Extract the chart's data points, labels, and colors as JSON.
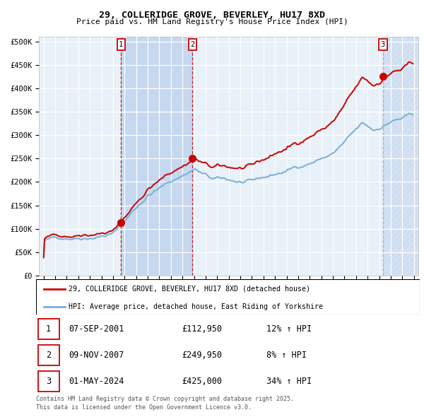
{
  "title": "29, COLLERIDGE GROVE, BEVERLEY, HU17 8XD",
  "subtitle": "Price paid vs. HM Land Registry's House Price Index (HPI)",
  "legend_line1": "29, COLLERIDGE GROVE, BEVERLEY, HU17 8XD (detached house)",
  "legend_line2": "HPI: Average price, detached house, East Riding of Yorkshire",
  "sale1_date": "07-SEP-2001",
  "sale1_price": "£112,950",
  "sale1_hpi": "12% ↑ HPI",
  "sale1_year": 2001.69,
  "sale1_value": 112950,
  "sale2_date": "09-NOV-2007",
  "sale2_price": "£249,950",
  "sale2_hpi": "8% ↑ HPI",
  "sale2_year": 2007.86,
  "sale2_value": 249950,
  "sale3_date": "01-MAY-2024",
  "sale3_price": "£425,000",
  "sale3_hpi": "34% ↑ HPI",
  "sale3_year": 2024.33,
  "sale3_value": 425000,
  "footnote_line1": "Contains HM Land Registry data © Crown copyright and database right 2025.",
  "footnote_line2": "This data is licensed under the Open Government Licence v3.0.",
  "line_color_red": "#cc0000",
  "line_color_blue": "#7aaed6",
  "bg_color": "#e8f0f8",
  "grid_color": "#ffffff",
  "ylim_min": 0,
  "ylim_max": 510000,
  "xmin": 1994.6,
  "xmax": 2027.4
}
